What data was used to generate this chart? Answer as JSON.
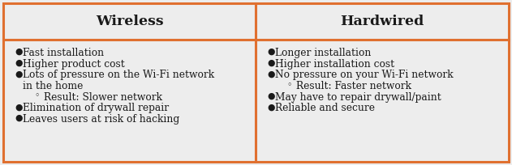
{
  "title_left": "Wireless",
  "title_right": "Hardwired",
  "left_items": [
    {
      "type": "bullet",
      "text": "Fast installation"
    },
    {
      "type": "bullet",
      "text": "Higher product cost"
    },
    {
      "type": "bullet",
      "text": "Lots of pressure on the Wi-Fi network\n    in the home"
    },
    {
      "type": "circle",
      "text": "Result: Slower network"
    },
    {
      "type": "bullet",
      "text": "Elimination of drywall repair"
    },
    {
      "type": "bullet",
      "text": "Leaves users at risk of hacking"
    }
  ],
  "right_items": [
    {
      "type": "bullet",
      "text": "Longer installation"
    },
    {
      "type": "bullet",
      "text": "Higher installation cost"
    },
    {
      "type": "bullet",
      "text": "No pressure on your Wi-Fi network"
    },
    {
      "type": "circle",
      "text": "Result: Faster network"
    },
    {
      "type": "bullet",
      "text": "May have to repair drywall/paint"
    },
    {
      "type": "bullet",
      "text": "Reliable and secure"
    }
  ],
  "border_color": "#E07030",
  "bg_color": "#EDEDED",
  "text_color": "#1a1a1a",
  "border_lw": 2.2,
  "header_fontsize": 12.5,
  "body_fontsize": 8.8
}
